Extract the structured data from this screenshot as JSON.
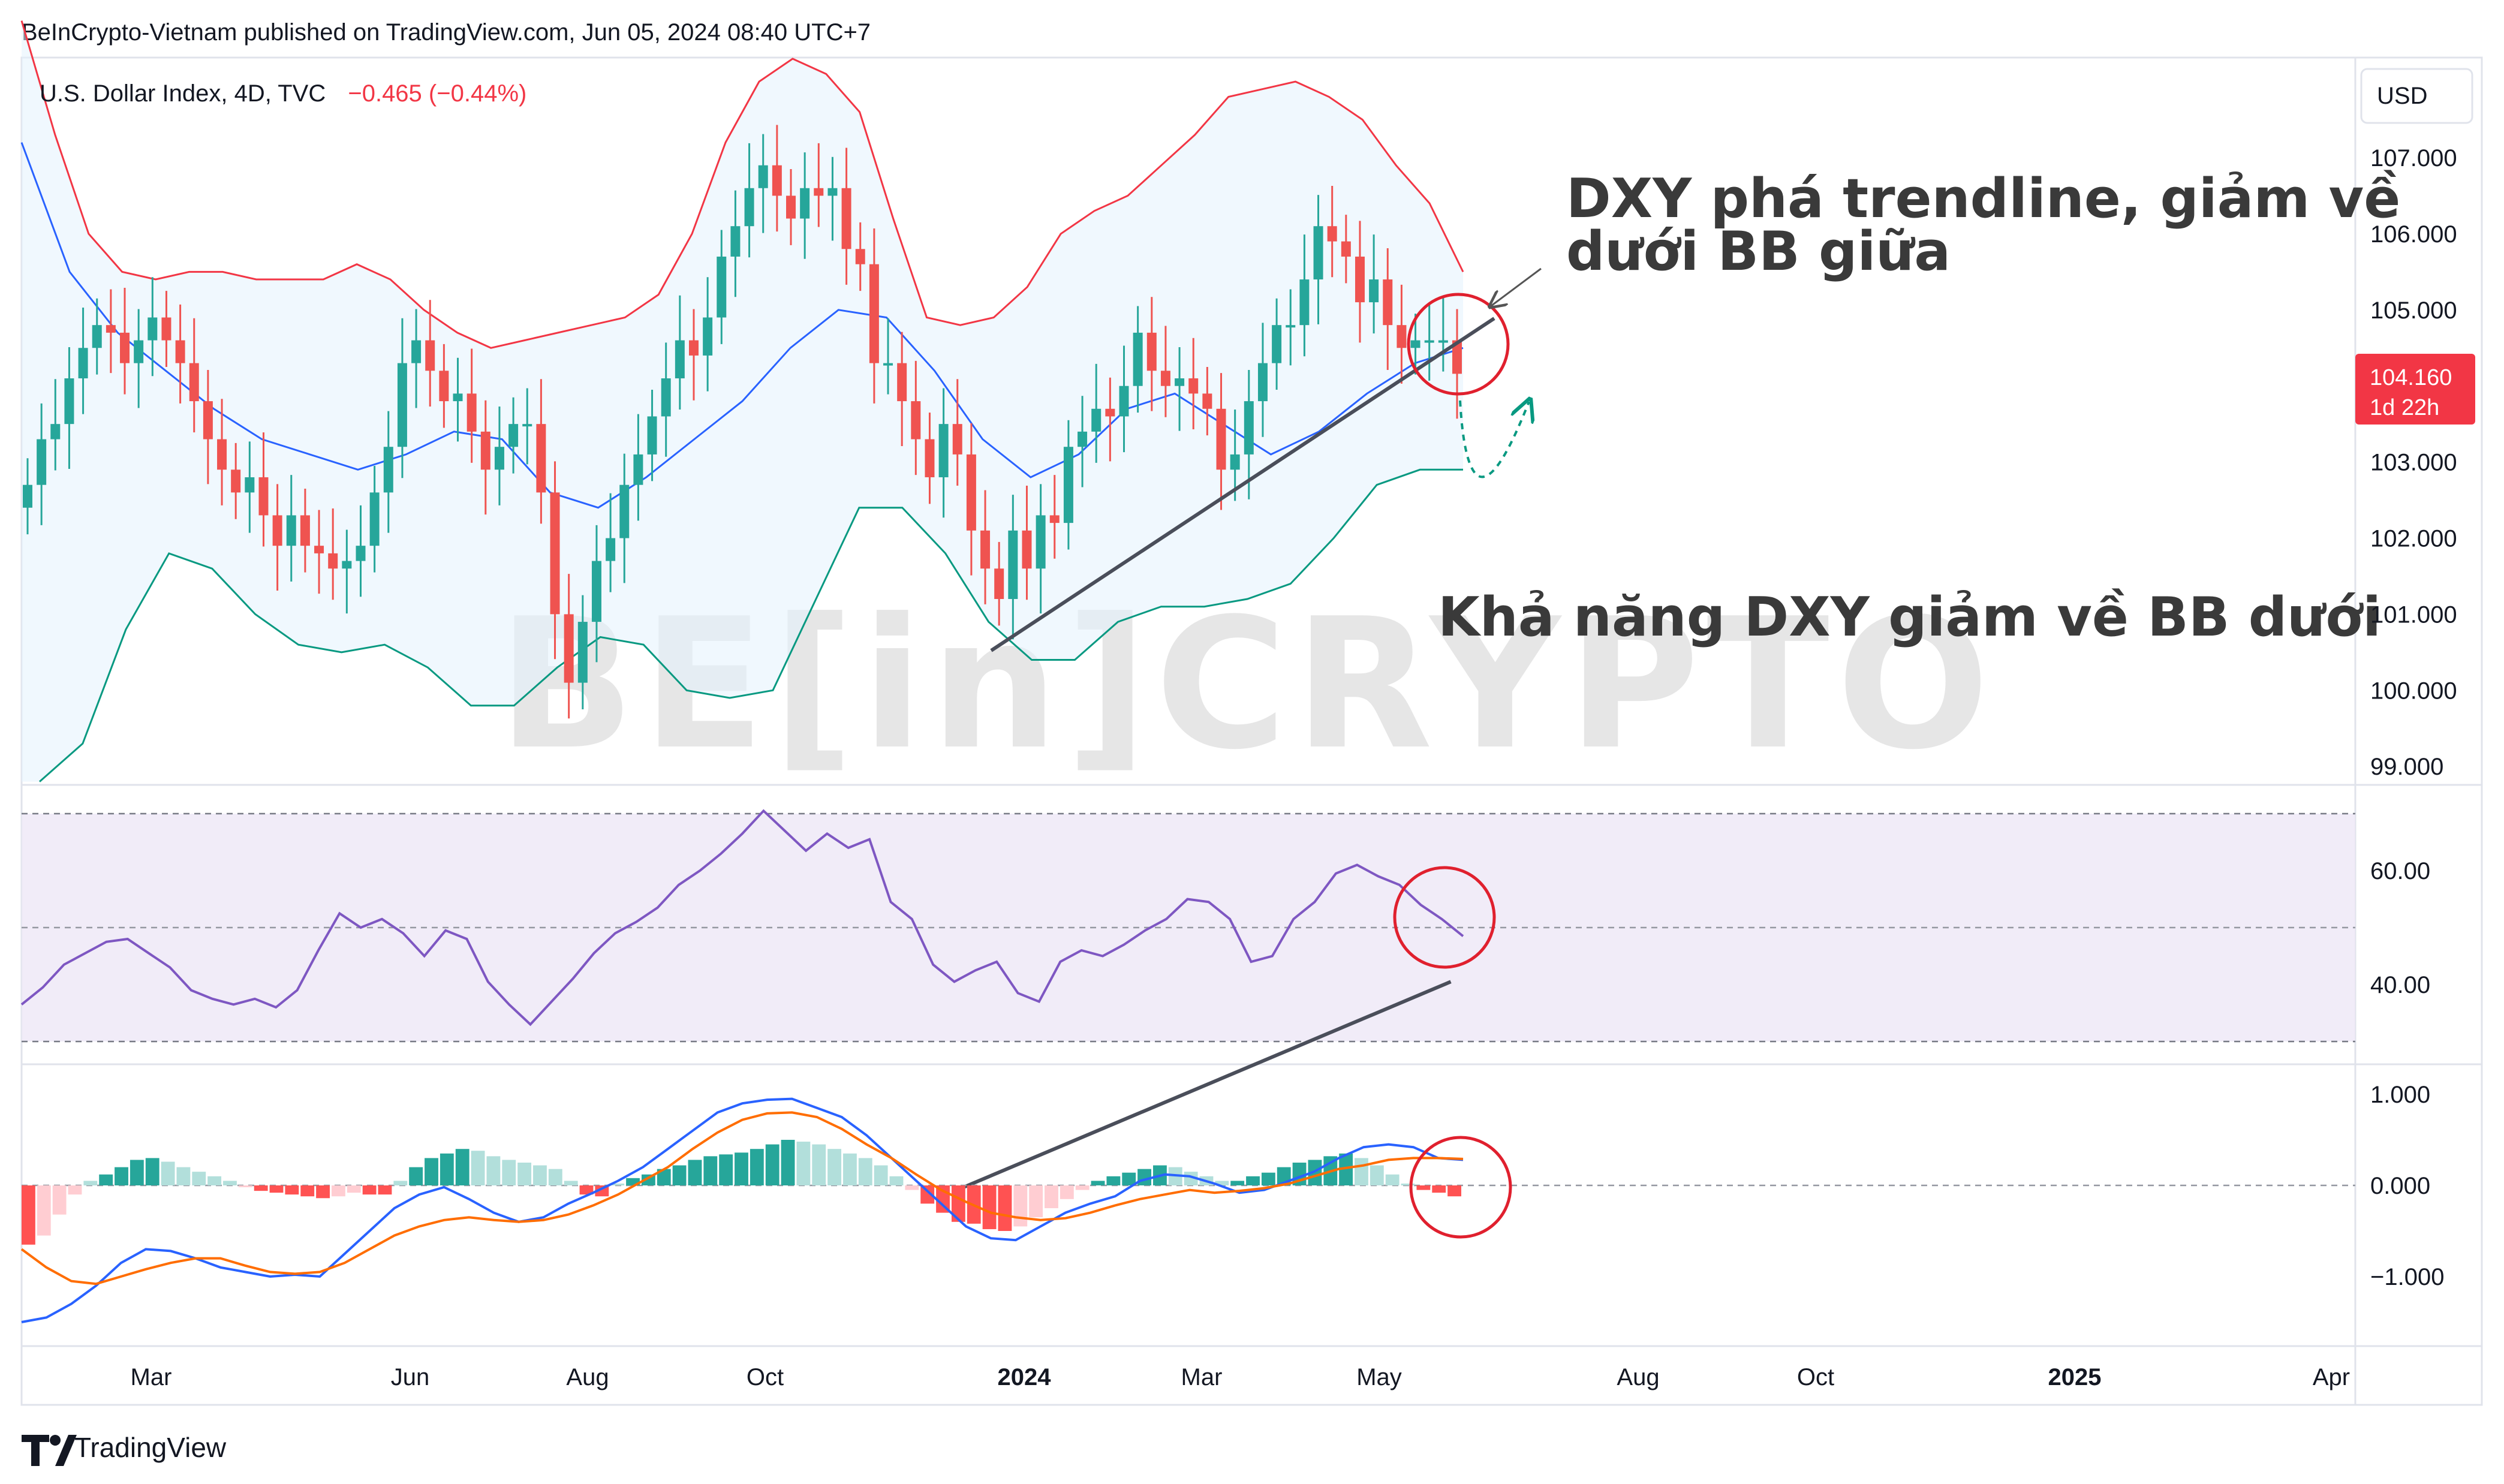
{
  "header": {
    "published": "BeInCrypto-Vietnam published on TradingView.com, Jun 05, 2024 08:40 UTC+7"
  },
  "legend": {
    "symbol": "U.S. Dollar Index, 4D, TVC",
    "change": "−0.465 (−0.44%)"
  },
  "currency_button": "USD",
  "last_price": {
    "value": "104.160",
    "countdown": "1d 22h",
    "color": "#f23645"
  },
  "annotations": {
    "top_line1": "DXY phá trendline, giảm về",
    "top_line2": "dưới BB giữa",
    "bottom": "Khả năng DXY giảm về BB dưới"
  },
  "watermark": "BE[in]CRYPTO",
  "footer_logo": "TradingView",
  "colors": {
    "up": "#26a69a",
    "down": "#ef5350",
    "bb_upper": "#f23645",
    "bb_basis": "#2962ff",
    "bb_lower": "#089981",
    "rsi": "#7e57c2",
    "macd": "#2962ff",
    "signal": "#ff6d00",
    "circle": "#e0202e"
  },
  "chart_data": [
    {
      "type": "candlestick",
      "title": "U.S. Dollar Index, 4D, TVC",
      "y_ticks": [
        "107.000",
        "106.000",
        "105.000",
        "104.000",
        "103.000",
        "102.000",
        "101.000",
        "100.000",
        "99.000"
      ],
      "ylim": [
        98.8,
        108.2
      ],
      "x_ticks": [
        "Mar",
        "Jun",
        "Aug",
        "Oct",
        "2024",
        "Mar",
        "May",
        "Aug",
        "Oct",
        "2025",
        "Apr"
      ],
      "close_series": [
        102.7,
        103.3,
        103.5,
        104.1,
        104.5,
        104.8,
        104.7,
        104.3,
        104.6,
        104.9,
        104.6,
        104.3,
        103.8,
        103.3,
        102.9,
        102.6,
        102.8,
        102.3,
        101.9,
        102.3,
        101.9,
        101.8,
        101.6,
        101.7,
        101.9,
        102.6,
        103.2,
        104.3,
        104.6,
        104.2,
        103.8,
        103.9,
        103.4,
        102.9,
        103.2,
        103.5,
        103.5,
        102.6,
        101.0,
        100.1,
        100.9,
        101.7,
        102.0,
        102.7,
        103.1,
        103.6,
        104.1,
        104.6,
        104.4,
        104.9,
        105.7,
        106.1,
        106.6,
        106.9,
        106.5,
        106.2,
        106.6,
        106.5,
        106.6,
        105.8,
        105.6,
        104.3,
        104.3,
        103.8,
        103.3,
        102.8,
        103.5,
        103.1,
        102.1,
        101.6,
        101.2,
        102.1,
        101.6,
        102.3,
        102.2,
        103.2,
        103.4,
        103.7,
        103.6,
        104.0,
        104.7,
        104.2,
        104.0,
        104.1,
        103.9,
        103.7,
        102.9,
        103.1,
        103.8,
        104.3,
        104.8,
        104.8,
        105.4,
        106.1,
        105.9,
        105.7,
        105.1,
        105.4,
        104.8,
        104.5,
        104.6,
        104.6,
        104.6,
        104.16
      ],
      "bb_upper": [
        108.8,
        107.3,
        106.0,
        105.5,
        105.4,
        105.5,
        105.5,
        105.4,
        105.4,
        105.4,
        105.6,
        105.4,
        105.0,
        104.7,
        104.5,
        104.6,
        104.7,
        104.8,
        104.9,
        105.2,
        106.0,
        107.2,
        108.0,
        108.3,
        108.1,
        107.6,
        106.2,
        104.9,
        104.8,
        104.9,
        105.3,
        106.0,
        106.3,
        106.5,
        106.9,
        107.3,
        107.8,
        107.9,
        108.0,
        107.8,
        107.5,
        106.9,
        106.4,
        105.5
      ],
      "bb_basis": [
        107.2,
        105.5,
        104.7,
        104.2,
        103.7,
        103.3,
        103.1,
        102.9,
        103.1,
        103.4,
        103.3,
        102.6,
        102.4,
        102.8,
        103.3,
        103.8,
        104.5,
        105.0,
        104.9,
        104.2,
        103.3,
        102.8,
        103.1,
        103.7,
        103.9,
        103.5,
        103.1,
        103.4,
        103.9,
        104.3,
        104.5
      ],
      "bb_lower": [
        98.8,
        99.3,
        100.8,
        101.8,
        101.6,
        101.0,
        100.6,
        100.5,
        100.6,
        100.3,
        99.8,
        99.8,
        100.3,
        100.7,
        100.6,
        100.0,
        99.9,
        100.0,
        101.2,
        102.4,
        102.4,
        101.8,
        100.9,
        100.4,
        100.4,
        100.9,
        101.1,
        101.1,
        101.2,
        101.4,
        102.0,
        102.7,
        102.9,
        102.9
      ]
    },
    {
      "type": "line",
      "name": "RSI",
      "y_ticks": [
        "60.00",
        "40.00"
      ],
      "bands": [
        70,
        50,
        30
      ],
      "ylim": [
        26,
        76
      ],
      "values": [
        36.5,
        39.5,
        43.5,
        45.5,
        47.5,
        48,
        45.5,
        43,
        39,
        37.5,
        36.5,
        37.5,
        36,
        39,
        46,
        52.5,
        50,
        51.5,
        49,
        45,
        49.5,
        48,
        40.5,
        36.5,
        33,
        37,
        41,
        45.5,
        49,
        51,
        53.5,
        57.5,
        60,
        63,
        66.5,
        70.5,
        67,
        63.5,
        66.5,
        64,
        65.5,
        54.5,
        51.5,
        43.5,
        40.5,
        42.5,
        44,
        38.5,
        37,
        44,
        46,
        45,
        47,
        49.5,
        51.5,
        55,
        54.5,
        51.5,
        44,
        45,
        51.5,
        54.5,
        59.5,
        61,
        59,
        57.5,
        54,
        51.5,
        48.5
      ],
      "trendline": [
        [
          32.3,
          4.5
        ],
        [
          52.5,
          40.5
        ]
      ]
    },
    {
      "type": "bar",
      "name": "MACD",
      "y_ticks": [
        "1.000",
        "0.000",
        "−1.000"
      ],
      "ylim": [
        -1.75,
        1.25
      ],
      "histogram": [
        -0.65,
        -0.55,
        -0.32,
        -0.1,
        0.05,
        0.12,
        0.2,
        0.28,
        0.3,
        0.26,
        0.2,
        0.15,
        0.1,
        0.05,
        -0.02,
        -0.06,
        -0.08,
        -0.1,
        -0.12,
        -0.14,
        -0.12,
        -0.08,
        -0.1,
        -0.1,
        0.05,
        0.2,
        0.3,
        0.35,
        0.4,
        0.38,
        0.32,
        0.28,
        0.25,
        0.22,
        0.18,
        0.05,
        -0.1,
        -0.12,
        0.02,
        0.08,
        0.12,
        0.18,
        0.22,
        0.28,
        0.32,
        0.34,
        0.36,
        0.4,
        0.45,
        0.5,
        0.48,
        0.45,
        0.4,
        0.35,
        0.3,
        0.22,
        0.1,
        -0.05,
        -0.2,
        -0.3,
        -0.4,
        -0.42,
        -0.48,
        -0.5,
        -0.45,
        -0.35,
        -0.25,
        -0.15,
        -0.05,
        0.05,
        0.1,
        0.14,
        0.18,
        0.22,
        0.2,
        0.15,
        0.1,
        0.05,
        0.05,
        0.1,
        0.14,
        0.2,
        0.25,
        0.28,
        0.32,
        0.35,
        0.3,
        0.22,
        0.12,
        0.02,
        -0.05,
        -0.08,
        -0.12
      ],
      "macd_line": [
        -1.5,
        -1.45,
        -1.3,
        -1.1,
        -0.85,
        -0.7,
        -0.72,
        -0.8,
        -0.9,
        -0.95,
        -1.0,
        -0.98,
        -1.0,
        -0.75,
        -0.5,
        -0.25,
        -0.1,
        -0.02,
        -0.15,
        -0.3,
        -0.4,
        -0.35,
        -0.2,
        -0.08,
        0.05,
        0.2,
        0.4,
        0.6,
        0.8,
        0.9,
        0.94,
        0.95,
        0.85,
        0.75,
        0.55,
        0.3,
        0.05,
        -0.2,
        -0.45,
        -0.58,
        -0.6,
        -0.45,
        -0.3,
        -0.2,
        -0.12,
        0.05,
        0.12,
        0.1,
        0.02,
        -0.08,
        -0.05,
        0.05,
        0.15,
        0.3,
        0.42,
        0.45,
        0.42,
        0.3,
        0.28
      ],
      "signal_line": [
        -0.7,
        -0.9,
        -1.05,
        -1.08,
        -1.0,
        -0.92,
        -0.85,
        -0.8,
        -0.8,
        -0.88,
        -0.95,
        -0.97,
        -0.95,
        -0.85,
        -0.7,
        -0.55,
        -0.45,
        -0.38,
        -0.35,
        -0.38,
        -0.4,
        -0.38,
        -0.32,
        -0.22,
        -0.1,
        0.05,
        0.2,
        0.4,
        0.58,
        0.72,
        0.79,
        0.8,
        0.75,
        0.62,
        0.45,
        0.3,
        0.12,
        -0.05,
        -0.18,
        -0.3,
        -0.35,
        -0.38,
        -0.36,
        -0.3,
        -0.22,
        -0.15,
        -0.1,
        -0.05,
        -0.08,
        -0.06,
        -0.03,
        0.02,
        0.1,
        0.18,
        0.22,
        0.28,
        0.3,
        0.3,
        0.29
      ]
    }
  ]
}
